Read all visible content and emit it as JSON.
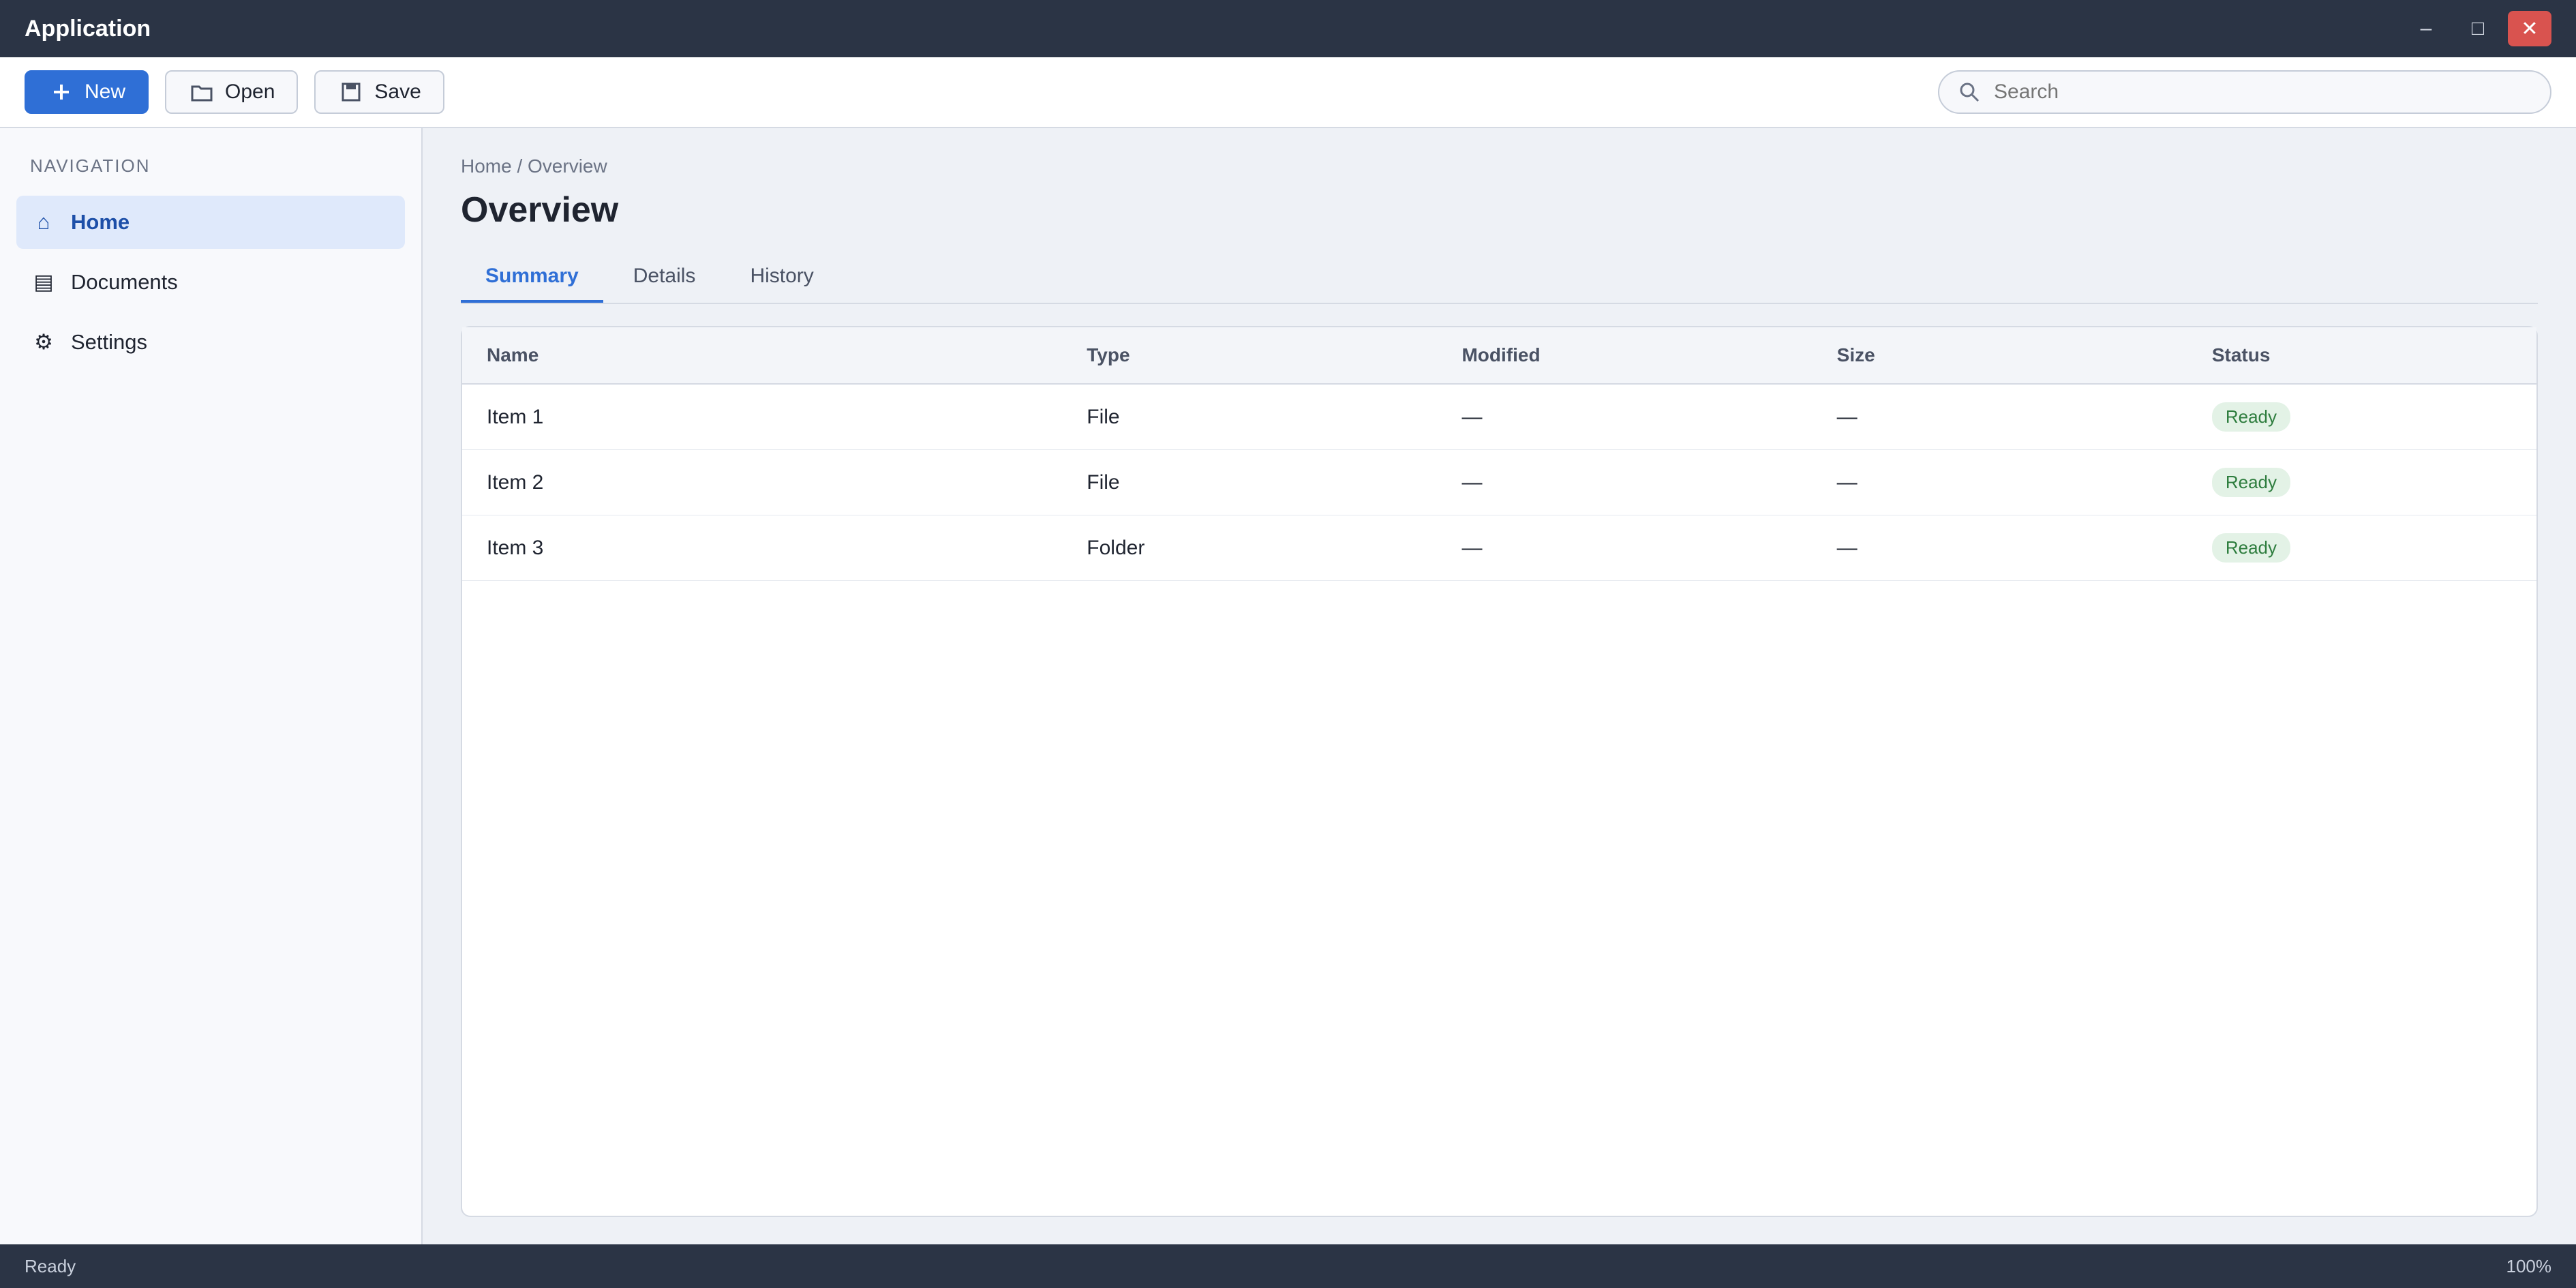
{
  "window": {
    "title": "Application",
    "minimize_glyph": "–",
    "maximize_glyph": "□",
    "close_glyph": "✕"
  },
  "toolbar": {
    "new_label": "New",
    "open_label": "Open",
    "save_label": "Save",
    "search_placeholder": "Search"
  },
  "sidebar": {
    "heading": "Navigation",
    "items": [
      {
        "label": "Home",
        "glyph": "⌂"
      },
      {
        "label": "Documents",
        "glyph": "▤"
      },
      {
        "label": "Settings",
        "glyph": "⚙"
      }
    ]
  },
  "main": {
    "breadcrumb": "Home / Overview",
    "title": "Overview",
    "tabs": [
      {
        "label": "Summary"
      },
      {
        "label": "Details"
      },
      {
        "label": "History"
      }
    ],
    "table": {
      "headers": [
        "Name",
        "Type",
        "Modified",
        "Size",
        "Status"
      ],
      "rows": [
        [
          "Item 1",
          "File",
          "—",
          "—",
          "Ready"
        ],
        [
          "Item 2",
          "File",
          "—",
          "—",
          "Ready"
        ],
        [
          "Item 3",
          "Folder",
          "—",
          "—",
          "Ready"
        ]
      ]
    }
  },
  "statusbar": {
    "left": "Ready",
    "right": "100%"
  },
  "colors": {
    "accent": "#2f6fd6",
    "titlebar": "#2b3445",
    "close": "#d9534f"
  }
}
